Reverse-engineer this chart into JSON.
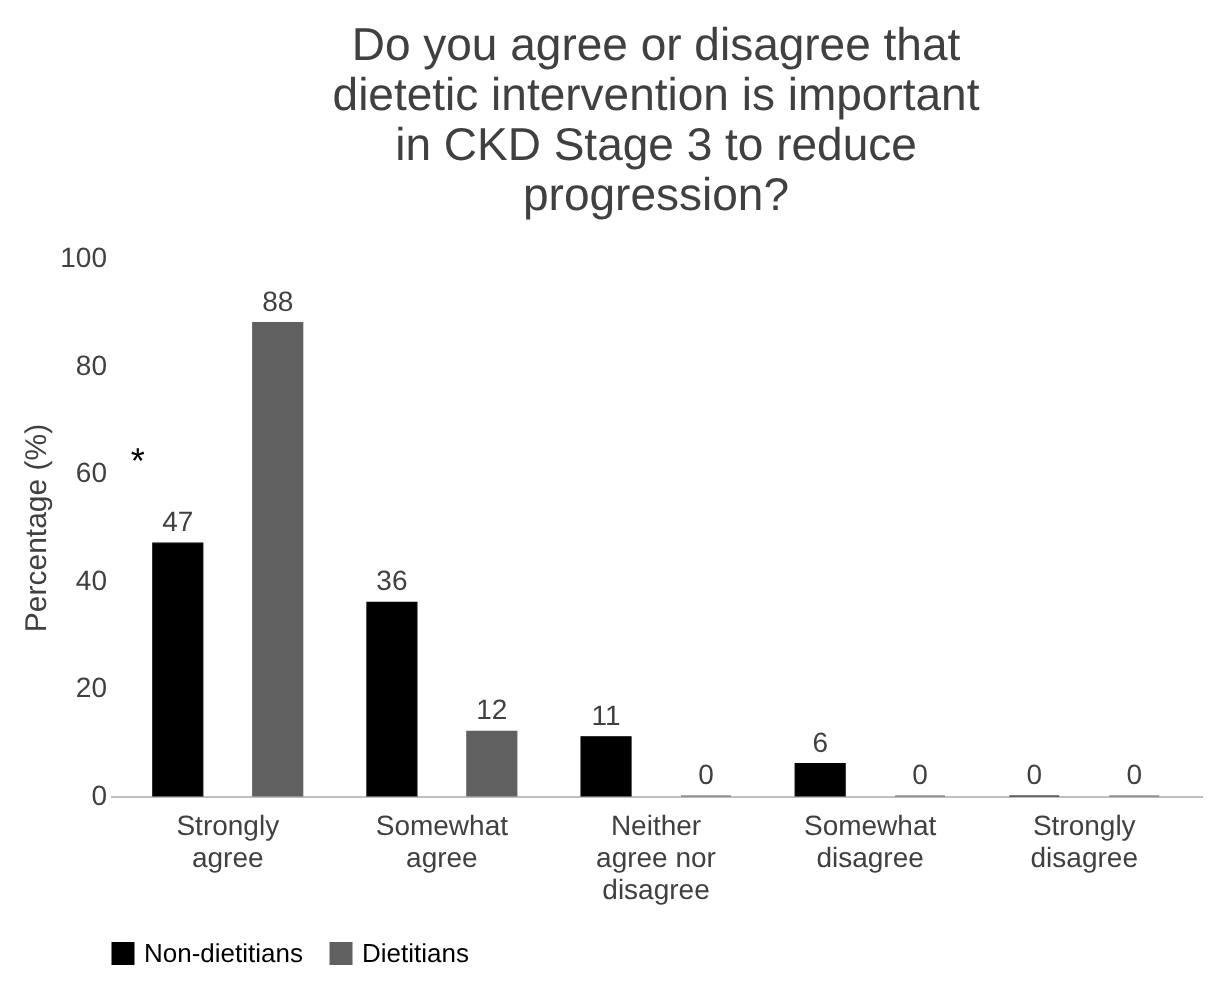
{
  "chart_data": {
    "type": "bar",
    "title": "Do you agree or disagree that dietetic intervention is important in CKD Stage 3 to reduce progression?",
    "ylabel": "Percentage (%)",
    "categories": [
      "Strongly agree",
      "Somewhat agree",
      "Neither agree nor disagree",
      "Somewhat disagree",
      "Strongly disagree"
    ],
    "series": [
      {
        "name": "Non-dietitians",
        "color": "#000000",
        "values": [
          47,
          36,
          11,
          6,
          0
        ]
      },
      {
        "name": "Dietitians",
        "color": "#606060",
        "values": [
          88,
          12,
          0,
          0,
          0
        ]
      }
    ],
    "ylim": [
      0,
      100
    ],
    "yticks": [
      0,
      20,
      40,
      60,
      80,
      100
    ],
    "data_labels": true,
    "grid": false,
    "legend": "bottom",
    "annotations": [
      "*"
    ]
  }
}
